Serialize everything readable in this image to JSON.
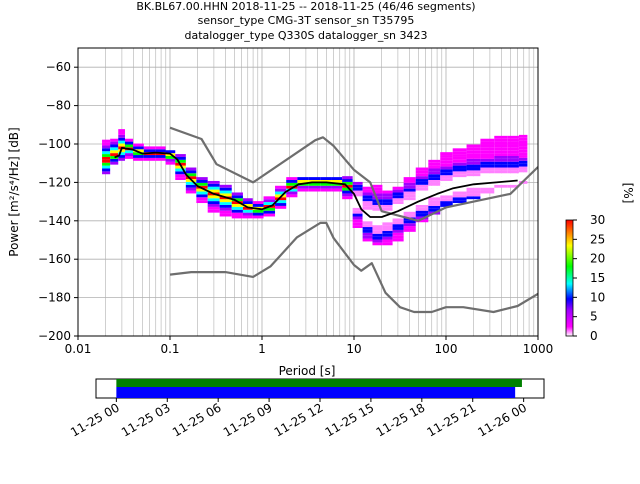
{
  "title": {
    "line1": "BK.BL67.00.HHN   2018-11-25 -- 2018-11-25  (46/46 segments)",
    "line2": "sensor_type CMG-3T sensor_sn T35795",
    "line3": "datalogger_type Q330S datalogger_sn 3423"
  },
  "chart_data": [
    {
      "type": "heatmap",
      "xlabel": "Period [s]",
      "ylabel": "Power [m²/s⁴/Hz] [dB]",
      "xscale": "log",
      "xlim": [
        0.01,
        1000
      ],
      "ylim": [
        -200,
        -50
      ],
      "xticks": [
        {
          "v": 0.01,
          "label": "0.01"
        },
        {
          "v": 0.1,
          "label": "0.1"
        },
        {
          "v": 1,
          "label": "1"
        },
        {
          "v": 10,
          "label": "10"
        },
        {
          "v": 100,
          "label": "100"
        },
        {
          "v": 1000,
          "label": "1000"
        }
      ],
      "yticks": [
        {
          "v": -60,
          "label": "−60"
        },
        {
          "v": -80,
          "label": "−80"
        },
        {
          "v": -100,
          "label": "−100"
        },
        {
          "v": -120,
          "label": "−120"
        },
        {
          "v": -140,
          "label": "−140"
        },
        {
          "v": -160,
          "label": "−160"
        },
        {
          "v": -180,
          "label": "−180"
        },
        {
          "v": -200,
          "label": "−200"
        }
      ],
      "grid": true,
      "colorbar": {
        "label": "[%]",
        "min": 0,
        "max": 30,
        "ticks": [
          {
            "v": 0,
            "label": "0"
          },
          {
            "v": 5,
            "label": "5"
          },
          {
            "v": 10,
            "label": "10"
          },
          {
            "v": 15,
            "label": "15"
          },
          {
            "v": 20,
            "label": "20"
          },
          {
            "v": 25,
            "label": "25"
          },
          {
            "v": 30,
            "label": "30"
          }
        ]
      },
      "series": [
        {
          "role": "high-noise-model",
          "points": [
            [
              0.1,
              -91.5
            ],
            [
              0.22,
              -97.4
            ],
            [
              0.32,
              -110.5
            ],
            [
              0.8,
              -120
            ],
            [
              3.8,
              -98
            ],
            [
              4.6,
              -96.5
            ],
            [
              6,
              -101
            ],
            [
              10,
              -113.5
            ],
            [
              15,
              -120
            ],
            [
              20,
              -135
            ],
            [
              50,
              -140
            ],
            [
              100,
              -133
            ],
            [
              200,
              -130
            ],
            [
              500,
              -126
            ],
            [
              1000,
              -112
            ]
          ]
        },
        {
          "role": "low-noise-model",
          "points": [
            [
              0.1,
              -168
            ],
            [
              0.17,
              -166.7
            ],
            [
              0.4,
              -166.7
            ],
            [
              0.8,
              -169.2
            ],
            [
              1.24,
              -163.7
            ],
            [
              2.4,
              -148.6
            ],
            [
              4.3,
              -141.1
            ],
            [
              5,
              -141.1
            ],
            [
              6,
              -149
            ],
            [
              10,
              -163
            ],
            [
              12,
              -166
            ],
            [
              15.6,
              -162.1
            ],
            [
              22,
              -177.5
            ],
            [
              31.6,
              -185
            ],
            [
              45,
              -187.5
            ],
            [
              70,
              -187.5
            ],
            [
              100,
              -185
            ],
            [
              154,
              -185
            ],
            [
              328,
              -187.5
            ],
            [
              600,
              -184.4
            ],
            [
              1000,
              -178
            ]
          ]
        },
        {
          "role": "mean",
          "points": [
            [
              0.025,
              -107
            ],
            [
              0.028,
              -106
            ],
            [
              0.03,
              -102
            ],
            [
              0.04,
              -103
            ],
            [
              0.05,
              -105
            ],
            [
              0.07,
              -104.5
            ],
            [
              0.1,
              -105
            ],
            [
              0.12,
              -108
            ],
            [
              0.15,
              -116
            ],
            [
              0.2,
              -122
            ],
            [
              0.3,
              -126
            ],
            [
              0.5,
              -129
            ],
            [
              0.7,
              -133
            ],
            [
              1,
              -134
            ],
            [
              1.3,
              -132
            ],
            [
              1.8,
              -125
            ],
            [
              2.5,
              -121
            ],
            [
              3.5,
              -120
            ],
            [
              5,
              -120
            ],
            [
              8,
              -121
            ],
            [
              10,
              -126
            ],
            [
              12,
              -134
            ],
            [
              15,
              -138
            ],
            [
              20,
              -138
            ],
            [
              30,
              -135
            ],
            [
              50,
              -130
            ],
            [
              80,
              -126
            ],
            [
              120,
              -123
            ],
            [
              200,
              -121
            ],
            [
              350,
              -120
            ],
            [
              600,
              -119
            ]
          ]
        },
        {
          "role": "mode",
          "points": [
            [
              0.025,
              -107
            ],
            [
              0.028,
              -106
            ],
            [
              0.03,
              -102
            ],
            [
              0.04,
              -103
            ],
            [
              0.05,
              -105
            ],
            [
              0.07,
              -104.5
            ],
            [
              0.1,
              -105
            ],
            [
              0.12,
              -108
            ],
            [
              0.15,
              -116
            ],
            [
              0.2,
              -122
            ],
            [
              0.3,
              -126
            ],
            [
              0.5,
              -129
            ],
            [
              0.7,
              -133
            ],
            [
              1,
              -134
            ],
            [
              1.3,
              -132
            ],
            [
              1.8,
              -125
            ],
            [
              2.5,
              -121
            ],
            [
              3.5,
              -120
            ],
            [
              5,
              -120
            ],
            [
              8,
              -121
            ],
            [
              10,
              -126
            ],
            [
              12,
              -134
            ],
            [
              15,
              -138
            ],
            [
              20,
              -138
            ],
            [
              30,
              -135
            ],
            [
              50,
              -130
            ],
            [
              80,
              -126
            ],
            [
              120,
              -123
            ],
            [
              200,
              -121
            ],
            [
              350,
              -120
            ],
            [
              600,
              -119
            ]
          ]
        }
      ],
      "heatmap_columns": [
        {
          "p": 0.02,
          "lo": -115,
          "hi": -98,
          "mid": -108
        },
        {
          "p": 0.025,
          "lo": -110,
          "hi": -97,
          "mid": -105
        },
        {
          "p": 0.03,
          "lo": -108,
          "hi": -92,
          "mid": -102
        },
        {
          "p": 0.035,
          "lo": -107,
          "hi": -98,
          "mid": -102
        },
        {
          "p": 0.045,
          "lo": -108,
          "hi": -100,
          "mid": -104
        },
        {
          "p": 0.06,
          "lo": -108,
          "hi": -102,
          "mid": -105
        },
        {
          "p": 0.08,
          "lo": -108,
          "hi": -102,
          "mid": -105
        },
        {
          "p": 0.1,
          "lo": -110,
          "hi": -103,
          "mid": -106
        },
        {
          "p": 0.13,
          "lo": -118,
          "hi": -106,
          "mid": -111
        },
        {
          "p": 0.17,
          "lo": -125,
          "hi": -112,
          "mid": -118
        },
        {
          "p": 0.22,
          "lo": -130,
          "hi": -118,
          "mid": -123
        },
        {
          "p": 0.3,
          "lo": -135,
          "hi": -120,
          "mid": -126
        },
        {
          "p": 0.4,
          "lo": -137,
          "hi": -122,
          "mid": -128
        },
        {
          "p": 0.55,
          "lo": -138,
          "hi": -126,
          "mid": -131
        },
        {
          "p": 0.7,
          "lo": -138,
          "hi": -128,
          "mid": -133
        },
        {
          "p": 0.9,
          "lo": -138,
          "hi": -130,
          "mid": -134
        },
        {
          "p": 1.2,
          "lo": -137,
          "hi": -128,
          "mid": -133
        },
        {
          "p": 1.6,
          "lo": -133,
          "hi": -122,
          "mid": -128
        },
        {
          "p": 2.1,
          "lo": -127,
          "hi": -118,
          "mid": -122
        },
        {
          "p": 2.8,
          "lo": -124,
          "hi": -117,
          "mid": -120
        },
        {
          "p": 3.7,
          "lo": -124,
          "hi": -117,
          "mid": -120
        },
        {
          "p": 5,
          "lo": -124,
          "hi": -117,
          "mid": -120
        },
        {
          "p": 6.5,
          "lo": -124,
          "hi": -117,
          "mid": -120
        },
        {
          "p": 8.5,
          "lo": -128,
          "hi": -117,
          "mid": -122
        },
        {
          "p": 11,
          "lo": -143,
          "hi": -120,
          "mid": -130
        },
        {
          "p": 14,
          "lo": -150,
          "hi": -122,
          "mid": -137
        },
        {
          "p": 18,
          "lo": -152,
          "hi": -122,
          "mid": -139
        },
        {
          "p": 23,
          "lo": -152,
          "hi": -124,
          "mid": -138
        },
        {
          "p": 30,
          "lo": -150,
          "hi": -122,
          "mid": -135
        },
        {
          "p": 40,
          "lo": -145,
          "hi": -118,
          "mid": -132
        },
        {
          "p": 55,
          "lo": -140,
          "hi": -112,
          "mid": -128
        },
        {
          "p": 75,
          "lo": -136,
          "hi": -108,
          "mid": -125
        },
        {
          "p": 100,
          "lo": -132,
          "hi": -104,
          "mid": -123
        },
        {
          "p": 140,
          "lo": -130,
          "hi": -102,
          "mid": -121
        },
        {
          "p": 200,
          "lo": -128,
          "hi": -100,
          "mid": -120
        },
        {
          "p": 280,
          "lo": -125,
          "hi": -98,
          "mid": -119
        },
        {
          "p": 400,
          "lo": -122,
          "hi": -96,
          "mid": -118
        },
        {
          "p": 550,
          "lo": -122,
          "hi": -96,
          "mid": -118
        },
        {
          "p": 700,
          "lo": -120,
          "hi": -96,
          "mid": -117
        }
      ]
    },
    {
      "type": "bar",
      "orientation": "horizontal-timeline",
      "xticks": [
        {
          "label": "11-25 00"
        },
        {
          "label": "11-25 03"
        },
        {
          "label": "11-25 06"
        },
        {
          "label": "11-25 09"
        },
        {
          "label": "11-25 12"
        },
        {
          "label": "11-25 15"
        },
        {
          "label": "11-25 18"
        },
        {
          "label": "11-25 21"
        },
        {
          "label": "11-26 00"
        }
      ],
      "x_hours_range": [
        -1.2,
        25.2
      ],
      "bars": [
        {
          "role": "data-coverage",
          "start_hour": 0,
          "end_hour": 23.5,
          "color": "#008000"
        },
        {
          "role": "psd-coverage",
          "start_hour": 0,
          "end_hour": 23.5,
          "color": "#0000ff"
        }
      ]
    }
  ],
  "colors": {
    "noise_model": "#6e6e6e",
    "mean": "#000000",
    "mode": "#000000",
    "grid": "#b0b0b0"
  }
}
